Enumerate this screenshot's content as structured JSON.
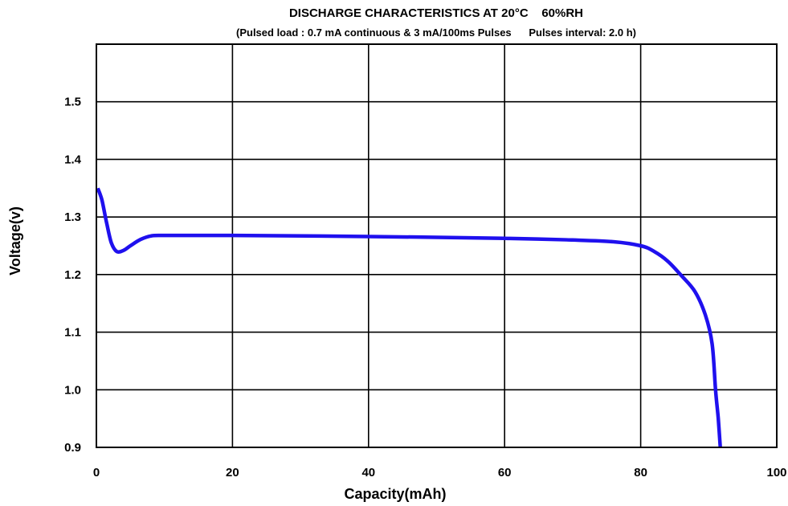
{
  "chart_data": {
    "type": "line",
    "title": "DISCHARGE CHARACTERISTICS AT 20°C    60%RH",
    "subtitle": "(Pulsed load : 0.7 mA continuous & 3 mA/100ms Pulses      Pulses interval: 2.0 h)",
    "xlabel": "Capacity(mAh)",
    "ylabel": "Voltage(v)",
    "xlim": [
      0,
      100
    ],
    "ylim": [
      0.9,
      1.6
    ],
    "x_ticks": [
      0,
      20,
      40,
      60,
      80,
      100
    ],
    "y_ticks": [
      0.9,
      1.0,
      1.1,
      1.2,
      1.3,
      1.4,
      1.5
    ],
    "x_tick_labels": [
      "0",
      "20",
      "40",
      "60",
      "80",
      "100"
    ],
    "y_tick_labels": [
      "0.9",
      "1.0",
      "1.1",
      "1.2",
      "1.3",
      "1.4",
      "1.5"
    ],
    "grid": true,
    "series": [
      {
        "color": "#1f10ee",
        "points": [
          [
            0.2,
            1.35
          ],
          [
            0.8,
            1.33
          ],
          [
            1.5,
            1.29
          ],
          [
            2.2,
            1.255
          ],
          [
            3.0,
            1.24
          ],
          [
            4.0,
            1.242
          ],
          [
            5.0,
            1.25
          ],
          [
            6.5,
            1.261
          ],
          [
            8.0,
            1.267
          ],
          [
            10.0,
            1.268
          ],
          [
            20.0,
            1.268
          ],
          [
            40.0,
            1.266
          ],
          [
            60.0,
            1.263
          ],
          [
            70.0,
            1.26
          ],
          [
            76.0,
            1.257
          ],
          [
            80.0,
            1.25
          ],
          [
            82.0,
            1.24
          ],
          [
            84.0,
            1.223
          ],
          [
            86.0,
            1.198
          ],
          [
            88.0,
            1.17
          ],
          [
            89.5,
            1.13
          ],
          [
            90.5,
            1.08
          ],
          [
            91.0,
            1.0
          ],
          [
            91.4,
            0.95
          ],
          [
            91.7,
            0.9
          ]
        ]
      }
    ]
  }
}
